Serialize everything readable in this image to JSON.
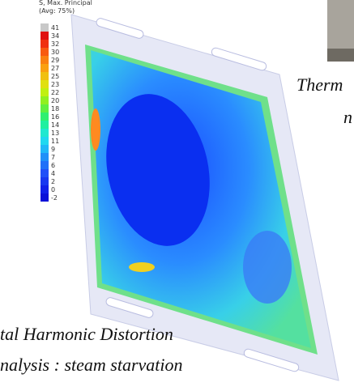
{
  "legend": {
    "title": "S, Max. Principal",
    "subtitle": "(Avg: 75%)",
    "labels": [
      "41",
      "34",
      "32",
      "30",
      "29",
      "27",
      "25",
      "23",
      "22",
      "20",
      "18",
      "16",
      "14",
      "13",
      "11",
      "9",
      "7",
      "6",
      "4",
      "2",
      "0",
      "-2"
    ]
  },
  "captions": [
    "Therm",
    "n",
    "tal Harmonic Distortion",
    "nalysis : steam starvation"
  ]
}
